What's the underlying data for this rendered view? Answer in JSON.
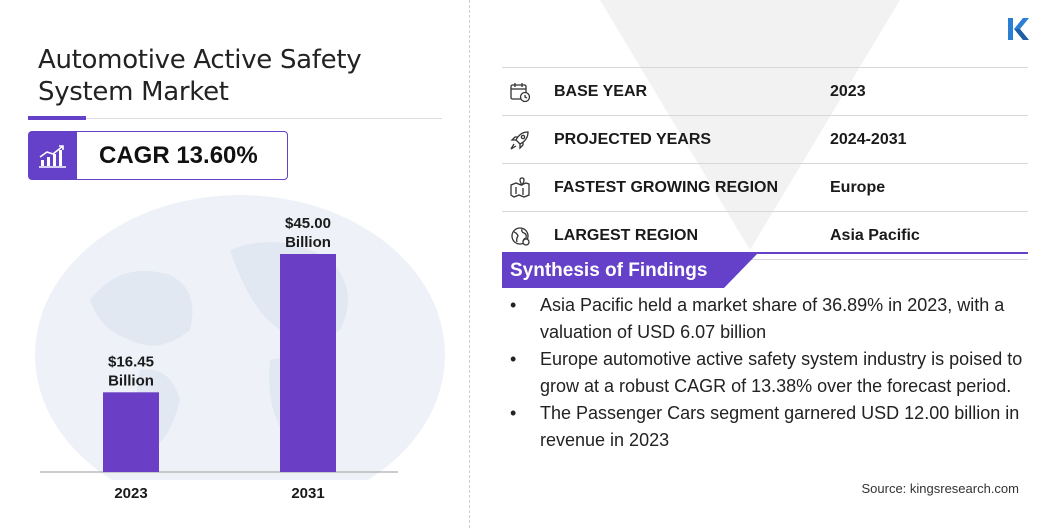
{
  "title": "Automotive Active Safety System Market",
  "cagr": "CAGR 13.60%",
  "colors": {
    "accent": "#6441c8",
    "bar": "#6a3fc6",
    "globe": "#eef2f8"
  },
  "chart_data": {
    "type": "bar",
    "categories": [
      "2023",
      "2031"
    ],
    "values": [
      16.45,
      45.0
    ],
    "value_labels": [
      [
        "$16.45",
        "Billion"
      ],
      [
        "$45.00",
        "Billion"
      ]
    ],
    "ylim": [
      0,
      45
    ]
  },
  "info_rows": [
    {
      "icon": "calendar-icon",
      "label": "BASE YEAR",
      "value": "2023"
    },
    {
      "icon": "rocket-icon",
      "label": "PROJECTED YEARS",
      "value": "2024-2031"
    },
    {
      "icon": "region-map-icon",
      "label": "FASTEST GROWING REGION",
      "value": "Europe"
    },
    {
      "icon": "globe-icon",
      "label": "LARGEST REGION",
      "value": "Asia Pacific"
    }
  ],
  "synthesis": {
    "title": "Synthesis of Findings",
    "bullet": "•",
    "findings": [
      "Asia Pacific held a market share of 36.89% in 2023, with a valuation of USD 6.07 billion",
      "Europe automotive active safety system industry is poised to grow at a robust CAGR of 13.38% over the forecast period.",
      "The Passenger Cars segment garnered USD 12.00 billion in revenue in 2023"
    ]
  },
  "source": "Source:  kingsresearch.com"
}
